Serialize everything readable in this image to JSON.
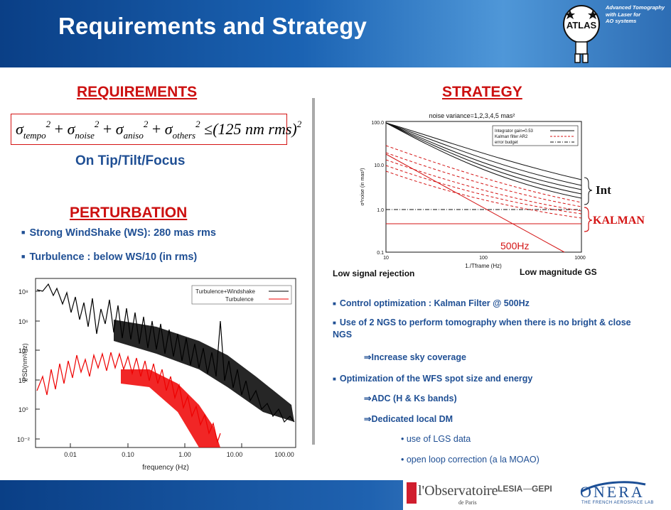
{
  "header": {
    "title": "Requirements and Strategy",
    "badge_text": "ATLAS",
    "tagline": "Advanced Tomography\nwith Laser for\nAO systems"
  },
  "requirements": {
    "heading": "REQUIREMENTS",
    "formula": {
      "terms": [
        "tempo",
        "noise",
        "aniso",
        "others"
      ],
      "rhs": "(125 nm rms)"
    },
    "scope": "On Tip/Tilt/Focus"
  },
  "perturbation": {
    "heading": "PERTURBATION",
    "bullets": [
      "Strong WindShake (WS): 280 mas rms",
      "Turbulence : below WS/10 (in rms)"
    ],
    "plot": {
      "legend": [
        "Turbulence+Windshake",
        "Turbulence"
      ],
      "xlabel": "frequency (Hz)",
      "ylabel": "PSD(nm²/Hz)",
      "xticks": [
        "0.01",
        "0.10",
        "1.00",
        "10.00",
        "100.00"
      ],
      "yticks": [
        "10⁸",
        "10⁶",
        "10⁴",
        "10²",
        "10⁰",
        "10⁻²"
      ]
    }
  },
  "strategy": {
    "heading": "STRATEGY",
    "plot": {
      "title": "noise variance=1,2,3,4,5 mas²",
      "legend": [
        "Integrator gain=0.53",
        "Kalman filter AR2",
        "error budget"
      ],
      "xlabel": "1./Tframe (Hz)",
      "ylabel": "σ²noise (in mas²)",
      "xticks": [
        "10",
        "100",
        "1000"
      ],
      "yticks": [
        "100.0",
        "10.0",
        "1.0",
        "0.1"
      ],
      "annotation": "500Hz",
      "label_int": "Int",
      "label_kalman": "KALMAN"
    },
    "caption_left": "Low signal rejection",
    "caption_right": "Low magnitude GS",
    "bullets": [
      "Control optimization : Kalman Filter @ 500Hz",
      "Use of 2 NGS to perform tomography when there is no bright & close NGS",
      "Optimization of the WFS spot size and energy"
    ],
    "implications": [
      "Increase sky coverage",
      "ADC (H & Ks bands)",
      "Dedicated local DM"
    ],
    "sub_bullets": [
      "use of LGS data",
      "open loop correction (a la MOAO)"
    ]
  },
  "footer": {
    "logo_obs_main": "l'Observatoire",
    "logo_obs_sub": "de Paris",
    "logo_lesia": "LESIA",
    "logo_gepi": "GEPI",
    "logo_onera": "ONERA",
    "logo_onera_sub": "THE FRENCH AEROSPACE LAB"
  },
  "colors": {
    "brand_blue": "#0a3f86",
    "heading_red": "#cc1010",
    "text_blue": "#1f4f94",
    "kalman_red": "#d41414"
  }
}
